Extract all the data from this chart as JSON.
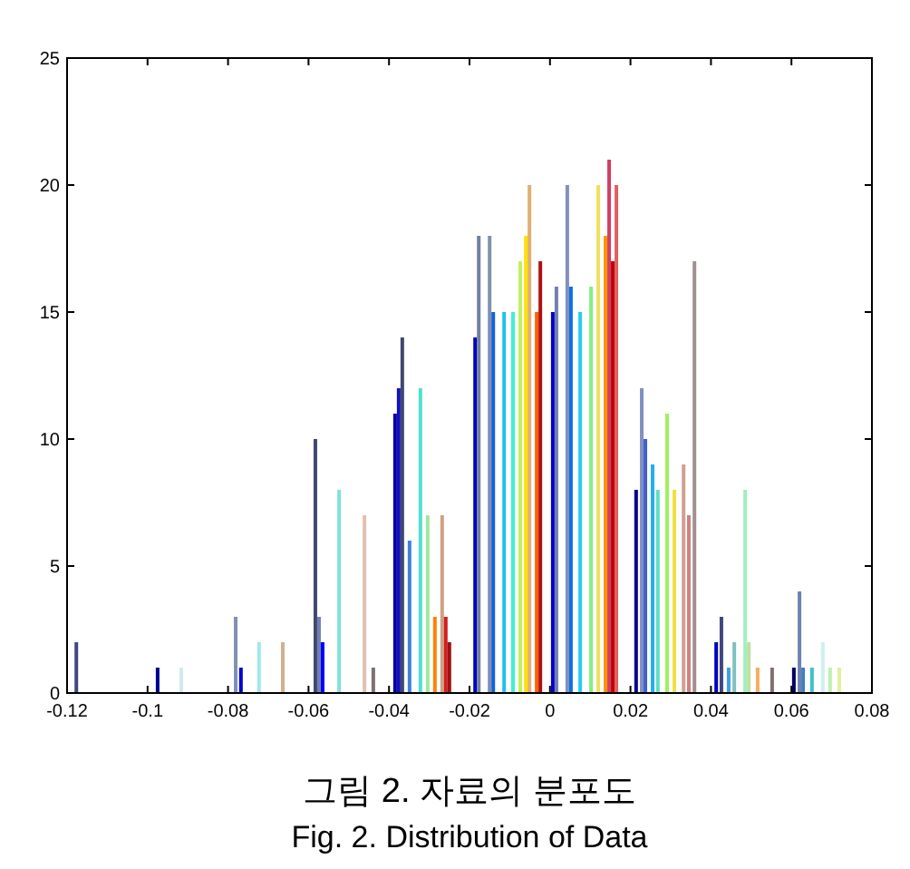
{
  "chart_data": {
    "type": "bar",
    "x": [
      -0.1177,
      -0.0975,
      -0.0916,
      -0.0781,
      -0.0768,
      -0.0723,
      -0.0664,
      -0.0583,
      -0.0574,
      -0.0565,
      -0.0524,
      -0.0461,
      -0.0439,
      -0.0385,
      -0.0376,
      -0.0367,
      -0.0349,
      -0.0322,
      -0.0304,
      -0.0286,
      -0.0268,
      -0.0259,
      -0.025,
      -0.0186,
      -0.0177,
      -0.015,
      -0.0141,
      -0.0114,
      -0.0092,
      -0.0074,
      -0.006,
      -0.0051,
      -0.0033,
      -0.0024,
      0.0007,
      0.0016,
      0.0043,
      0.0052,
      0.0075,
      0.0102,
      0.012,
      0.0138,
      0.0147,
      0.0156,
      0.0165,
      0.0214,
      0.0228,
      0.0237,
      0.0255,
      0.0268,
      0.0291,
      0.0309,
      0.0332,
      0.0345,
      0.0359,
      0.0413,
      0.0426,
      0.0444,
      0.0458,
      0.0485,
      0.0494,
      0.0516,
      0.0552,
      0.0606,
      0.062,
      0.0629,
      0.0651,
      0.0678,
      0.0696,
      0.0719
    ],
    "values": [
      2,
      1,
      1,
      3,
      1,
      2,
      2,
      10,
      3,
      2,
      8,
      7,
      1,
      11,
      12,
      14,
      6,
      12,
      7,
      3,
      7,
      3,
      2,
      14,
      18,
      18,
      15,
      15,
      15,
      17,
      18,
      20,
      15,
      17,
      15,
      16,
      20,
      16,
      15,
      16,
      20,
      18,
      21,
      17,
      20,
      8,
      12,
      10,
      9,
      8,
      11,
      8,
      9,
      7,
      17,
      2,
      3,
      1,
      2,
      8,
      2,
      1,
      1,
      1,
      4,
      1,
      1,
      2,
      1,
      1
    ],
    "colors": [
      "#404880",
      "#000090",
      "#d0e8f0",
      "#8090b0",
      "#0000d0",
      "#a0e8f0",
      "#d0b090",
      "#404870",
      "#7080b0",
      "#0000ff",
      "#80e0e0",
      "#e0c0b0",
      "#807070",
      "#0000a0",
      "#1010c0",
      "#404870",
      "#4080e0",
      "#50e0d0",
      "#a0e8a0",
      "#ff8000",
      "#d0a080",
      "#d02020",
      "#a01010",
      "#0000c0",
      "#7080a0",
      "#8090b0",
      "#1060e0",
      "#20c0f0",
      "#40f0d0",
      "#c0f060",
      "#ffe000",
      "#e0b070",
      "#ff6000",
      "#b01010",
      "#0000d0",
      "#7080b0",
      "#8090c0",
      "#1070e0",
      "#20d0f0",
      "#80f080",
      "#f0e060",
      "#ff9000",
      "#d04060",
      "#c00000",
      "#e06060",
      "#000090",
      "#8090c0",
      "#4060d0",
      "#20b0f0",
      "#60e0c0",
      "#a0f060",
      "#f0e040",
      "#d0a090",
      "#d08080",
      "#a09090",
      "#0000c0",
      "#404880",
      "#40a0e0",
      "#80c0c0",
      "#a0f0c0",
      "#c0e0a0",
      "#f0b060",
      "#807070",
      "#000060",
      "#7080b0",
      "#4080c0",
      "#40c0d0",
      "#d0f0f0",
      "#c0f0b0",
      "#e0f0a0"
    ],
    "xlim": [
      -0.12,
      0.08
    ],
    "xticks": [
      -0.12,
      -0.1,
      -0.08,
      -0.06,
      -0.04,
      -0.02,
      0,
      0.02,
      0.04,
      0.06,
      0.08
    ],
    "ylim": [
      0,
      25
    ],
    "yticks": [
      0,
      5,
      10,
      15,
      20,
      25
    ],
    "annotations": [
      "그림 2. 자료의 분포도",
      "Fig. 2. Distribution of Data"
    ]
  }
}
